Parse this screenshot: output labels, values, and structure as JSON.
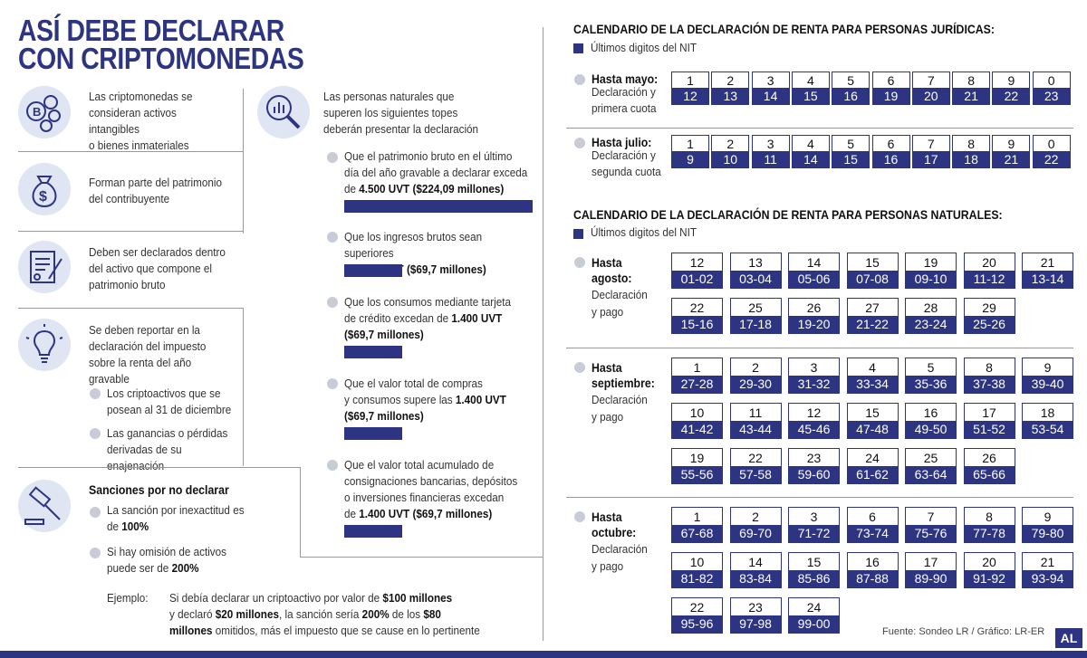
{
  "title_lines": [
    "ASÍ DEBE DECLARAR",
    "CON CRIPTOMONEDAS"
  ],
  "left": {
    "item1": [
      "Las criptomonedas se",
      "consideran activos intangibles",
      "o bienes inmateriales"
    ],
    "item2": [
      "Forman parte del patrimonio",
      "del contribuyente"
    ],
    "item3": [
      "Deben ser declarados dentro",
      "del activo que compone el",
      "patrimonio bruto"
    ],
    "item4": [
      "Se deben reportar en la",
      "declaración del impuesto",
      "sobre la renta del año gravable"
    ],
    "item4_sub1": [
      "Los criptoactivos que se",
      "posean al 31 de diciembre"
    ],
    "item4_sub2": [
      "Las ganancias o pérdidas",
      "derivadas de su enajenación"
    ],
    "sanctions_title": "Sanciones por no declarar",
    "sanction1": [
      "La sanción por inexactitud es",
      "de ",
      "100%"
    ],
    "sanction2": [
      "Si hay omisión de activos",
      "puede ser de ",
      "200%"
    ],
    "example_label": "Ejemplo:",
    "example": [
      "Si debía declarar un criptoactivo por valor de ",
      "$100 millones",
      "y declaró ",
      "$20 millones",
      ", la sanción sería ",
      "200%",
      " de los ",
      "$80",
      "millones",
      " omitidos, más el impuesto que se cause en lo pertinente"
    ]
  },
  "middle": {
    "intro": [
      "Las personas naturales que",
      "superen los siguientes topes",
      "deberán presentar la declaración"
    ],
    "c1": [
      "Que el patrimonio bruto en el último",
      "día del año gravable a declarar exceda",
      "de ",
      "4.500 UVT ($224,09 millones)"
    ],
    "c2": [
      "Que los ingresos brutos sean superiores",
      "a ",
      "1.400 UVT ($69,7 millones)"
    ],
    "c3": [
      "Que los consumos mediante tarjeta",
      "de crédito excedan de ",
      "1.400 UVT",
      "($69,7 millones)"
    ],
    "c4": [
      "Que el valor total de compras",
      "y consumos supere las ",
      "1.400 UVT",
      "($69,7 millones)"
    ],
    "c5": [
      "Que el valor total acumulado de",
      "consignaciones bancarias, depósitos",
      "o inversiones financieras excedan",
      "de ",
      "1.400 UVT ($69,7 millones)"
    ],
    "bar_relative_values": [
      1.0,
      0.31,
      0.31,
      0.31,
      0.31
    ]
  },
  "juridicas": {
    "title": "CALENDARIO DE LA DECLARACIÓN DE RENTA PARA PERSONAS JURÍDICAS:",
    "legend": "Últimos digitos del NIT",
    "rows": [
      {
        "label": "Hasta mayo:",
        "sub": [
          "Declaración y",
          "primera cuota"
        ],
        "nit": [
          "1",
          "2",
          "3",
          "4",
          "5",
          "6",
          "7",
          "8",
          "9",
          "0"
        ],
        "days": [
          "12",
          "13",
          "14",
          "15",
          "16",
          "19",
          "20",
          "21",
          "22",
          "23"
        ]
      },
      {
        "label": "Hasta julio:",
        "sub": [
          "Declaración y",
          "segunda cuota"
        ],
        "nit": [
          "1",
          "2",
          "3",
          "4",
          "5",
          "6",
          "7",
          "8",
          "9",
          "0"
        ],
        "days": [
          "9",
          "10",
          "11",
          "14",
          "15",
          "16",
          "17",
          "18",
          "21",
          "22"
        ]
      }
    ]
  },
  "naturales": {
    "title": "CALENDARIO DE LA DECLARACIÓN DE RENTA PARA PERSONAS NATURALES:",
    "legend": "Últimos digitos del NIT",
    "groups": [
      {
        "label": [
          "Hasta",
          "agosto:"
        ],
        "sub": [
          "Declaración",
          "y pago"
        ],
        "cells": [
          [
            "12",
            "01-02"
          ],
          [
            "13",
            "03-04"
          ],
          [
            "14",
            "05-06"
          ],
          [
            "15",
            "07-08"
          ],
          [
            "19",
            "09-10"
          ],
          [
            "20",
            "11-12"
          ],
          [
            "21",
            "13-14"
          ],
          [
            "22",
            "15-16"
          ],
          [
            "25",
            "17-18"
          ],
          [
            "26",
            "19-20"
          ],
          [
            "27",
            "21-22"
          ],
          [
            "28",
            "23-24"
          ],
          [
            "29",
            "25-26"
          ]
        ]
      },
      {
        "label": [
          "Hasta",
          "septiembre:"
        ],
        "sub": [
          "Declaración",
          "y pago"
        ],
        "cells": [
          [
            "1",
            "27-28"
          ],
          [
            "2",
            "29-30"
          ],
          [
            "3",
            "31-32"
          ],
          [
            "4",
            "33-34"
          ],
          [
            "5",
            "35-36"
          ],
          [
            "8",
            "37-38"
          ],
          [
            "9",
            "39-40"
          ],
          [
            "10",
            "41-42"
          ],
          [
            "11",
            "43-44"
          ],
          [
            "12",
            "45-46"
          ],
          [
            "15",
            "47-48"
          ],
          [
            "16",
            "49-50"
          ],
          [
            "17",
            "51-52"
          ],
          [
            "18",
            "53-54"
          ],
          [
            "19",
            "55-56"
          ],
          [
            "22",
            "57-58"
          ],
          [
            "23",
            "59-60"
          ],
          [
            "24",
            "61-62"
          ],
          [
            "25",
            "63-64"
          ],
          [
            "26",
            "65-66"
          ]
        ]
      },
      {
        "label": [
          "Hasta",
          "octubre:"
        ],
        "sub": [
          "Declaración",
          "y pago"
        ],
        "cells": [
          [
            "1",
            "67-68"
          ],
          [
            "2",
            "69-70"
          ],
          [
            "3",
            "71-72"
          ],
          [
            "6",
            "73-74"
          ],
          [
            "7",
            "75-76"
          ],
          [
            "8",
            "77-78"
          ],
          [
            "9",
            "79-80"
          ],
          [
            "10",
            "81-82"
          ],
          [
            "14",
            "83-84"
          ],
          [
            "15",
            "85-86"
          ],
          [
            "16",
            "87-88"
          ],
          [
            "17",
            "89-90"
          ],
          [
            "20",
            "91-92"
          ],
          [
            "21",
            "93-94"
          ],
          [
            "22",
            "95-96"
          ],
          [
            "23",
            "97-98"
          ],
          [
            "24",
            "99-00"
          ]
        ]
      }
    ]
  },
  "source": "Fuente: Sondeo LR / Gráfico: LR-ER",
  "logo": "AL",
  "colors": {
    "accent": "#2d3582",
    "icon_bg": "#dfe5f2",
    "bullet": "#c8ccd6"
  }
}
